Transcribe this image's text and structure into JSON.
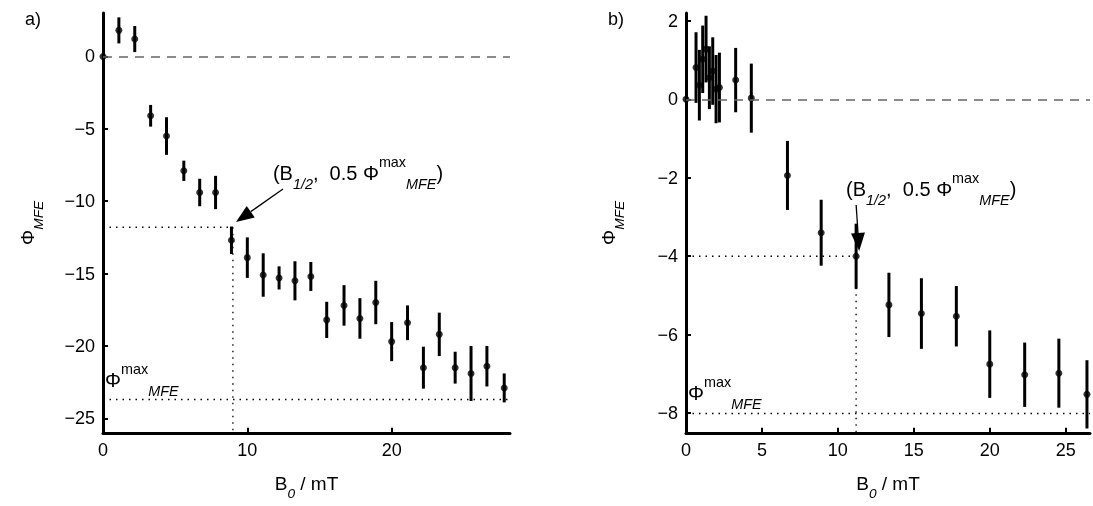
{
  "chart_data": [
    {
      "type": "scatter",
      "title": "a)",
      "xlabel": "B$_{0}$ / mT",
      "ylabel": "Φ$_{MFE}$",
      "xlim": [
        0,
        28.2
      ],
      "ylim": [
        -26,
        3
      ],
      "xticks": [
        0,
        10,
        20
      ],
      "yticks": [
        0,
        -5,
        -10,
        -15,
        -20,
        -25
      ],
      "marker": "circle",
      "ref_lines": [
        {
          "axis": "y",
          "value": 0,
          "line_style": "dashed",
          "color": "#666666"
        },
        {
          "axis": "y",
          "value": -23.7,
          "line_style": "dotted",
          "color": "#000000",
          "label": "Φ$^{max}$$_{MFE}$"
        }
      ],
      "annotations": [
        {
          "text": "(B$_{1/2}$,  0.5 Φ$^{max}$$_{MFE}$)",
          "x": 9,
          "y": -11.8
        }
      ],
      "series": [
        {
          "color": "#000000",
          "x": [
            0,
            1.1,
            2.2,
            3.3,
            4.4,
            5.6,
            6.7,
            7.8,
            8.9,
            10.0,
            11.1,
            12.2,
            13.3,
            14.4,
            15.5,
            16.7,
            17.8,
            18.9,
            20.0,
            21.1,
            22.2,
            23.3,
            24.4,
            25.5,
            26.6,
            27.8
          ],
          "values": [
            0,
            1.8,
            1.2,
            -4.1,
            -5.5,
            -7.9,
            -9.4,
            -9.4,
            -12.7,
            -13.9,
            -15.1,
            -15.3,
            -15.5,
            -15.2,
            -18.2,
            -17.2,
            -18.1,
            -17.0,
            -19.7,
            -18.4,
            -21.5,
            -19.2,
            -21.5,
            -21.9,
            -21.4,
            -22.9
          ],
          "errors": [
            null,
            0.9,
            0.9,
            0.75,
            1.3,
            0.7,
            0.95,
            1.15,
            0.95,
            1.4,
            1.5,
            0.8,
            1.35,
            1.0,
            1.25,
            1.4,
            1.4,
            1.5,
            1.35,
            1.2,
            1.45,
            1.5,
            1.1,
            1.9,
            1.4,
            1.0
          ]
        },
        {
          "type": "line",
          "color": "#000000",
          "line_style": "dotted",
          "marker": "none",
          "x": [
            0,
            9,
            9
          ],
          "values": [
            -11.8,
            -11.8,
            -26
          ]
        }
      ]
    },
    {
      "type": "scatter",
      "title": "b)",
      "xlabel": "B$_{0}$ / mT",
      "ylabel": "Φ$_{MFE}$",
      "xlim": [
        0,
        26.6
      ],
      "ylim": [
        -8.5,
        2.2
      ],
      "xticks": [
        0,
        5,
        10,
        15,
        20,
        25
      ],
      "yticks": [
        2,
        0,
        -2,
        -4,
        -6,
        -8
      ],
      "marker": "circle",
      "ref_lines": [
        {
          "axis": "y",
          "value": 0,
          "line_style": "dashed",
          "color": "#666666"
        },
        {
          "axis": "y",
          "value": -8,
          "line_style": "dotted",
          "color": "#000000",
          "label": "Φ$^{max}$$_{MFE}$"
        }
      ],
      "annotations": [
        {
          "text": "(B$_{1/2}$,  0.5 Φ$^{max}$$_{MFE}$)",
          "x": 11.2,
          "y": -4
        }
      ],
      "series": [
        {
          "color": "#000000",
          "x": [
            0,
            0.66,
            0.88,
            1.1,
            1.32,
            1.54,
            1.76,
            1.98,
            2.2,
            3.27,
            4.3,
            6.68,
            8.9,
            11.2,
            13.36,
            15.5,
            17.8,
            20.0,
            22.3,
            24.55,
            26.4
          ],
          "values": [
            0,
            0.81,
            0.36,
            1.02,
            1.28,
            0.55,
            0.72,
            0.26,
            0.3,
            0.49,
            0.03,
            -1.94,
            -3.4,
            -4.0,
            -5.24,
            -5.46,
            -5.53,
            -6.75,
            -7.02,
            -6.98,
            -7.52
          ],
          "errors": [
            null,
            0.9,
            0.9,
            0.86,
            0.85,
            0.8,
            0.86,
            0.87,
            0.89,
            0.82,
            0.88,
            0.88,
            0.84,
            0.83,
            0.82,
            0.9,
            0.77,
            0.86,
            0.82,
            0.88,
            0.87
          ]
        },
        {
          "type": "line",
          "color": "#000000",
          "line_style": "dotted",
          "marker": "none",
          "x": [
            0,
            11.2,
            11.2
          ],
          "values": [
            -4,
            -4,
            -8.5
          ]
        }
      ]
    }
  ]
}
